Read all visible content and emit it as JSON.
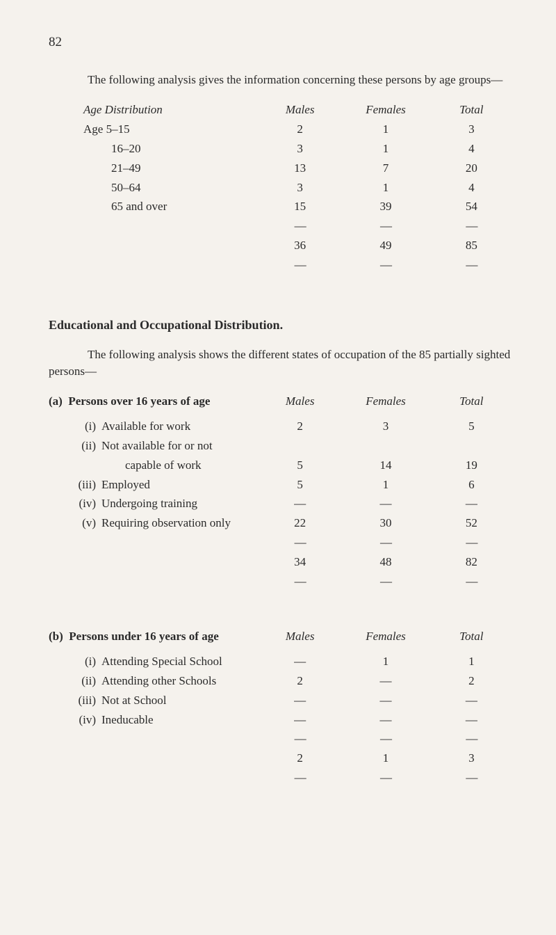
{
  "page_number": "82",
  "intro1": "The following analysis gives the information concerning these persons by age groups—",
  "age_distribution": {
    "header": {
      "label": "Age Distribution",
      "c1": "Males",
      "c2": "Females",
      "c3": "Total"
    },
    "rows": [
      {
        "label": "Age  5–15",
        "c1": "2",
        "c2": "1",
        "c3": "3"
      },
      {
        "label": "16–20",
        "c1": "3",
        "c2": "1",
        "c3": "4"
      },
      {
        "label": "21–49",
        "c1": "13",
        "c2": "7",
        "c3": "20"
      },
      {
        "label": "50–64",
        "c1": "3",
        "c2": "1",
        "c3": "4"
      },
      {
        "label": "65 and over",
        "c1": "15",
        "c2": "39",
        "c3": "54"
      }
    ],
    "total": {
      "c1": "36",
      "c2": "49",
      "c3": "85"
    }
  },
  "edu_heading": "Educational and Occupational Distribution.",
  "intro2": "The following analysis shows the different states of occupation of the 85 partially sighted persons—",
  "section_a": {
    "header": {
      "prefix": "(a)",
      "label": "Persons over 16 years of age",
      "c1": "Males",
      "c2": "Females",
      "c3": "Total"
    },
    "rows": [
      {
        "num": "(i)",
        "label": "Available for work",
        "c1": "2",
        "c2": "3",
        "c3": "5"
      },
      {
        "num": "(ii)",
        "label": "Not available for or not",
        "c1": "",
        "c2": "",
        "c3": ""
      },
      {
        "num": "",
        "label": "capable of work",
        "continue": true,
        "c1": "5",
        "c2": "14",
        "c3": "19"
      },
      {
        "num": "(iii)",
        "label": "Employed",
        "c1": "5",
        "c2": "1",
        "c3": "6"
      },
      {
        "num": "(iv)",
        "label": "Undergoing training",
        "c1": "—",
        "c2": "—",
        "c3": "—"
      },
      {
        "num": "(v)",
        "label": "Requiring observation only",
        "c1": "22",
        "c2": "30",
        "c3": "52"
      }
    ],
    "total": {
      "c1": "34",
      "c2": "48",
      "c3": "82"
    }
  },
  "section_b": {
    "header": {
      "prefix": "(b)",
      "label": "Persons under 16 years of age",
      "c1": "Males",
      "c2": "Females",
      "c3": "Total"
    },
    "rows": [
      {
        "num": "(i)",
        "label": "Attending Special School",
        "c1": "—",
        "c2": "1",
        "c3": "1"
      },
      {
        "num": "(ii)",
        "label": "Attending other Schools",
        "c1": "2",
        "c2": "—",
        "c3": "2"
      },
      {
        "num": "(iii)",
        "label": "Not at School",
        "c1": "—",
        "c2": "—",
        "c3": "—"
      },
      {
        "num": "(iv)",
        "label": "Ineducable",
        "c1": "—",
        "c2": "—",
        "c3": "—"
      }
    ],
    "total": {
      "c1": "2",
      "c2": "1",
      "c3": "3"
    }
  }
}
